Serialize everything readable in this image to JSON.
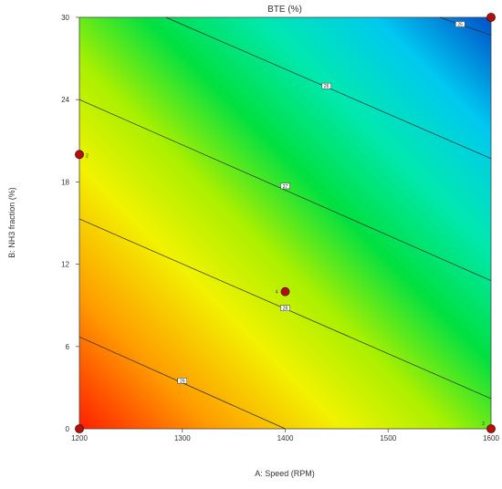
{
  "chart_data": {
    "type": "contour",
    "title": "BTE (%)",
    "xlabel": "A: Speed (RPM)",
    "ylabel": "B: NH3 fraction (%)",
    "xlim": [
      1200,
      1600
    ],
    "ylim": [
      0,
      30
    ],
    "xticks": [
      "1200",
      "1300",
      "1400",
      "1500",
      "1600"
    ],
    "yticks": [
      "0",
      "6",
      "12",
      "18",
      "24",
      "30"
    ],
    "contours": [
      {
        "label": "29",
        "line": [
          [
            1200,
            6.7
          ],
          [
            1400,
            0
          ]
        ],
        "label_at": [
          1300,
          3.5
        ]
      },
      {
        "label": "28",
        "line": [
          [
            1200,
            15.3
          ],
          [
            1600,
            2.2
          ]
        ],
        "label_at": [
          1400,
          8.8
        ]
      },
      {
        "label": "27",
        "line": [
          [
            1200,
            24.0
          ],
          [
            1600,
            10.8
          ]
        ],
        "label_at": [
          1400,
          17.7
        ]
      },
      {
        "label": "26",
        "line": [
          [
            1284,
            30
          ],
          [
            1600,
            19.7
          ]
        ],
        "label_at": [
          1440,
          25.0
        ]
      },
      {
        "label": "25",
        "line": [
          [
            1550,
            30
          ],
          [
            1600,
            28.7
          ]
        ],
        "label_at": [
          1570,
          29.5
        ]
      }
    ],
    "design_points": [
      {
        "x": 1200,
        "y": 0,
        "label": ""
      },
      {
        "x": 1200,
        "y": 20,
        "label": "2"
      },
      {
        "x": 1400,
        "y": 10,
        "label": "4"
      },
      {
        "x": 1600,
        "y": 0,
        "label": "2"
      },
      {
        "x": 1600,
        "y": 30,
        "label": ""
      }
    ],
    "colorscale": [
      "#ff1f00",
      "#ff9a00",
      "#f2f200",
      "#a8f000",
      "#00e040",
      "#00e8b0",
      "#00c8f0",
      "#0050c8"
    ],
    "grid": false
  }
}
